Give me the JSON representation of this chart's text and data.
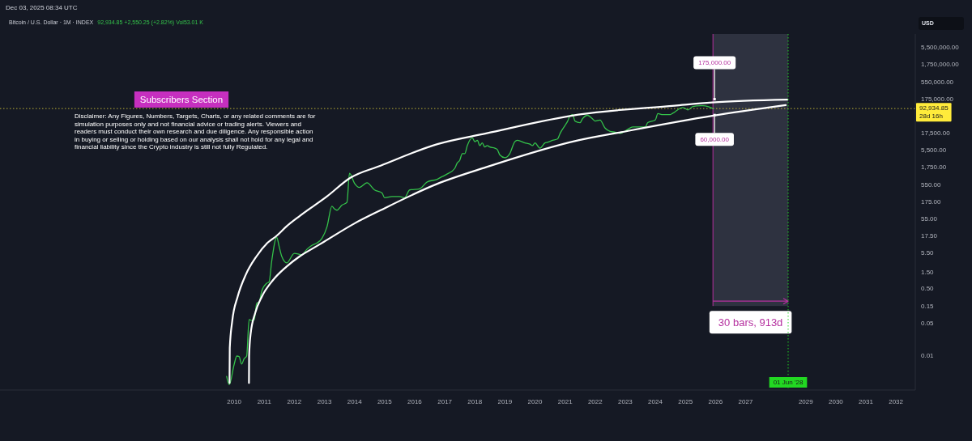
{
  "chart_data": {
    "type": "line",
    "title": "Bitcoin / U.S. Dollar · 1M · INDEX",
    "subtitle": "92,934.85 +2,550.25 (+2.82%) Vol53.01 K",
    "ylabel": "USD",
    "annotations": [
      "Dec 03, 2025 08:34 UTC",
      "Subscribers Section",
      "Disclaimer: Any Figures, Numbers, Targets, Charts, or any related comments are for simulation purposes only and not financial advice or trading alerts. Viewers and readers must conduct their own research and due diligence. Any responsible action in buying or selling or holding based on our analysis shall not hold for any legal and financial liability since the Crypto industry is still not fully Regulated.",
      {
        "text": "175,000.00",
        "x": "2025-12-01",
        "y": 175000
      },
      {
        "text": "60,000.00",
        "x": "2025-12-01",
        "y": 60000
      }
    ],
    "log": "y",
    "xlim": [
      "2002-03-20",
      "2032-08-23"
    ],
    "xticks": [
      "2010",
      "2011",
      "2012",
      "2013",
      "2014",
      "2015",
      "2016",
      "2017",
      "2018",
      "2019",
      "2020",
      "2021",
      "2022",
      "2023",
      "2024",
      "2025",
      "2026",
      "2027",
      "2029",
      "2030",
      "2031",
      "2032"
    ],
    "ylim": [
      0.00056,
      14000000
    ],
    "yticks": [
      {
        "value": 5500000,
        "label": "5,500,000.00"
      },
      {
        "value": 1750000,
        "label": "1,750,000.00"
      },
      {
        "value": 550000,
        "label": "550,000.00"
      },
      {
        "value": 175000,
        "label": "175,000.00"
      },
      {
        "value": 17500,
        "label": "17,500.00"
      },
      {
        "value": 5500,
        "label": "5,500.00"
      },
      {
        "value": 1750,
        "label": "1,750.00"
      },
      {
        "value": 550,
        "label": "550.00"
      },
      {
        "value": 175,
        "label": "175.00"
      },
      {
        "value": 55,
        "label": "55.00"
      },
      {
        "value": 17.5,
        "label": "17.50"
      },
      {
        "value": 5.5,
        "label": "5.50"
      },
      {
        "value": 1.5,
        "label": "1.50"
      },
      {
        "value": 0.5,
        "label": "0.50"
      },
      {
        "value": 0.15,
        "label": "0.15"
      },
      {
        "value": 0.05,
        "label": "0.05"
      },
      {
        "value": 0.0055,
        "label": "0.01"
      }
    ],
    "series": [
      {
        "type": "line",
        "color": "#34c24a",
        "x": [
          "2009-10",
          "2009-11",
          "2010-01",
          "2010-02",
          "2010-03",
          "2010-04",
          "2010-05",
          "2010-06",
          "2010-07",
          "2010-08",
          "2010-09",
          "2010-10",
          "2010-11",
          "2010-12",
          "2011-02",
          "2011-03",
          "2011-04",
          "2011-06",
          "2011-07",
          "2011-08",
          "2011-10",
          "2012-01",
          "2012-04",
          "2012-06",
          "2012-08",
          "2012-10",
          "2012-12",
          "2013-02",
          "2013-04",
          "2013-05",
          "2013-06",
          "2013-08",
          "2013-10",
          "2013-11",
          "2014-01",
          "2014-03",
          "2014-06",
          "2014-09",
          "2014-12",
          "2015-01",
          "2015-04",
          "2015-07",
          "2015-09",
          "2015-11",
          "2016-03",
          "2016-06",
          "2016-10",
          "2016-12",
          "2017-02",
          "2017-05",
          "2017-06",
          "2017-07",
          "2017-08",
          "2017-09",
          "2017-10",
          "2017-12",
          "2018-01",
          "2018-02",
          "2018-03",
          "2018-04",
          "2018-05",
          "2018-06",
          "2018-07",
          "2018-09",
          "2018-10",
          "2018-11",
          "2019-01",
          "2019-03",
          "2019-05",
          "2019-06",
          "2019-09",
          "2019-11",
          "2019-12",
          "2020-01",
          "2020-03",
          "2020-05",
          "2020-06",
          "2020-08",
          "2020-10",
          "2020-11",
          "2021-01",
          "2021-02",
          "2021-03",
          "2021-04",
          "2021-05",
          "2021-07",
          "2021-08",
          "2021-10",
          "2021-12",
          "2022-01",
          "2022-03",
          "2022-05",
          "2022-07",
          "2022-09",
          "2022-11",
          "2023-02",
          "2023-04",
          "2023-06",
          "2023-09",
          "2023-10",
          "2024-01",
          "2024-02",
          "2024-04",
          "2024-07",
          "2024-08",
          "2024-11",
          "2024-12",
          "2025-02",
          "2025-04",
          "2025-07",
          "2025-08",
          "2025-10",
          "2025-12"
        ],
        "values": [
          0.0014,
          0.0008,
          0.0032,
          0.0055,
          0.0053,
          0.0032,
          0.0046,
          0.0055,
          0.064,
          0.06,
          0.064,
          0.19,
          0.21,
          0.43,
          0.74,
          0.81,
          3.2,
          16,
          8.6,
          4.5,
          2.9,
          5.5,
          5,
          7.2,
          9.4,
          11,
          15,
          33,
          130,
          110,
          100,
          140,
          170,
          1200,
          610,
          460,
          630,
          390,
          320,
          230,
          250,
          250,
          230,
          390,
          420,
          670,
          800,
          960,
          1150,
          1650,
          2400,
          2850,
          4500,
          4500,
          7700,
          13000,
          10000,
          11000,
          7700,
          9200,
          7000,
          7700,
          7000,
          6500,
          5900,
          4100,
          3400,
          4500,
          10000,
          11000,
          9200,
          8500,
          7700,
          9200,
          6500,
          9200,
          9600,
          11000,
          12000,
          17500,
          30000,
          40000,
          57000,
          62000,
          40000,
          36000,
          47000,
          59000,
          46000,
          40000,
          43000,
          25000,
          20000,
          19000,
          17500,
          23000,
          27000,
          27000,
          27000,
          36000,
          43000,
          66000,
          62000,
          62000,
          68000,
          95000,
          100000,
          85000,
          107000,
          113000,
          113000,
          107000,
          92934.85
        ]
      },
      {
        "type": "line",
        "color": "#ffffff",
        "x": [
          "2009-11-05",
          "2009-11-08",
          "2009-12-08",
          "2010-02-12",
          "2010-05-21",
          "2010-09-29",
          "2011-02-07",
          "2011-06-02",
          "2011-09-24",
          "2012-03-07",
          "2013-01-29",
          "2013-11-10",
          "2014-11-14",
          "2016-10-03",
          "2018-05-17",
          "2021-06-10",
          "2024-08-24",
          "2025-11-19",
          "2028-05-23"
        ],
        "values": [
          0.0009,
          0.0095,
          0.058,
          0.3,
          1.3,
          4.5,
          11,
          18,
          33,
          68,
          250,
          880,
          2000,
          8500,
          17500,
          62000,
          113000,
          140000,
          169000
        ]
      },
      {
        "type": "line",
        "color": "#ffffff",
        "x": [
          "2010-06-29",
          "2010-07-01",
          "2010-07-19",
          "2010-09-13",
          "2010-12-03",
          "2011-04-14",
          "2011-09-24",
          "2012-03-07",
          "2012-08-18",
          "2012-12-27",
          "2013-12-23",
          "2014-11-14",
          "2016-10-03",
          "2018-05-17",
          "2021-06-10",
          "2022-11-11",
          "2025-11-22",
          "2028-05-03"
        ],
        "values": [
          0.0009,
          0.0055,
          0.024,
          0.1,
          0.3,
          0.89,
          2.2,
          4.5,
          7.8,
          12,
          40,
          100,
          590,
          1800,
          11000,
          19000,
          57000,
          117000
        ]
      }
    ],
    "ref_lines": [
      {
        "axis": "y",
        "value": 92934.85,
        "label": "92,934.85\n28d 16h",
        "color": "#ffeb3b",
        "line_style": "dotted"
      },
      {
        "axis": "x",
        "value": "2028-06-01",
        "label": "01 Jun '28",
        "color": "#22d822",
        "line_style": "dotted"
      }
    ],
    "bands": [
      {
        "axis": "x",
        "from": "2025-12-01",
        "to": "2028-06-01",
        "label": "30 bars, 913d",
        "color": "#2e3240"
      }
    ]
  }
}
